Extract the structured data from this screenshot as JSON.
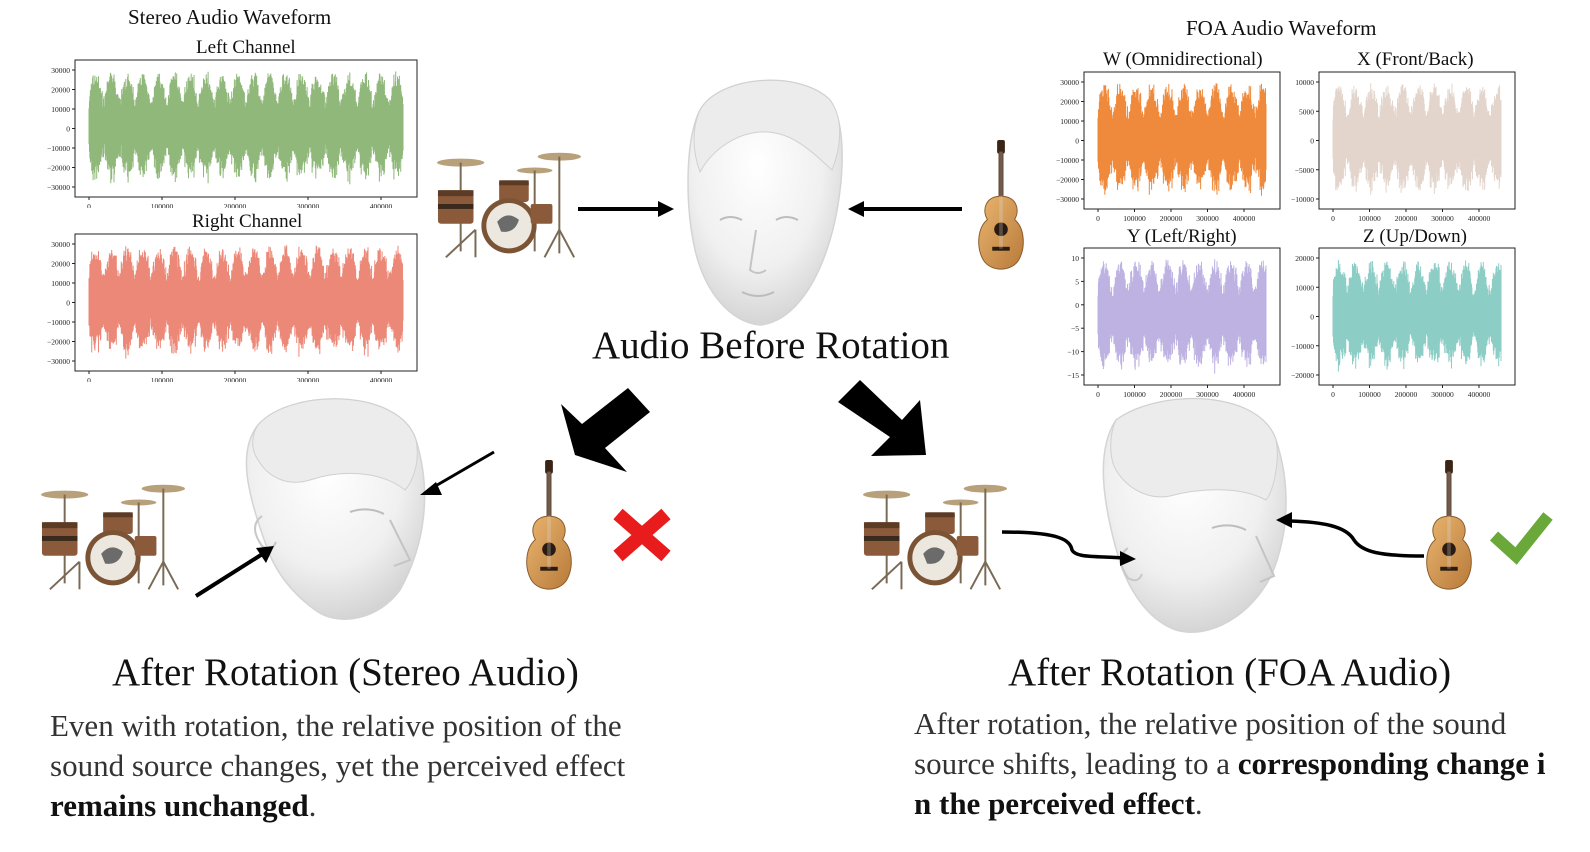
{
  "stereo": {
    "title": "Stereo Audio Waveform",
    "left": {
      "label": "Left Channel",
      "color": "#8fb87a",
      "yticks": [
        "30000",
        "20000",
        "10000",
        "0",
        "−10000",
        "−20000",
        "−30000"
      ],
      "xticks": [
        "0",
        "100000",
        "200000",
        "300000",
        "400000"
      ]
    },
    "right": {
      "label": "Right Channel",
      "color": "#ec8878",
      "yticks": [
        "30000",
        "20000",
        "10000",
        "0",
        "−10000",
        "−20000",
        "−30000"
      ],
      "xticks": [
        "0",
        "100000",
        "200000",
        "300000",
        "400000"
      ]
    }
  },
  "foa": {
    "title": "FOA Audio Waveform",
    "w": {
      "label": "W (Omnidirectional)",
      "color": "#ef8a3c",
      "yticks": [
        "30000",
        "20000",
        "10000",
        "0",
        "−10000",
        "−20000",
        "−30000"
      ],
      "xticks": [
        "0",
        "100000",
        "200000",
        "300000",
        "400000"
      ]
    },
    "x": {
      "label": "X (Front/Back)",
      "color": "#e3d5cc",
      "yticks": [
        "10000",
        "5000",
        "0",
        "−5000",
        "−10000"
      ],
      "xticks": [
        "0",
        "100000",
        "200000",
        "300000",
        "400000"
      ]
    },
    "y": {
      "label": "Y (Left/Right)",
      "color": "#bdb2e2",
      "yticks": [
        "10",
        "5",
        "0",
        "−5",
        "−10",
        "−15"
      ],
      "xticks": [
        "0",
        "100000",
        "200000",
        "300000",
        "400000"
      ]
    },
    "z": {
      "label": "Z (Up/Down)",
      "color": "#8ccdc6",
      "yticks": [
        "20000",
        "10000",
        "0",
        "−10000",
        "−20000"
      ],
      "xticks": [
        "0",
        "100000",
        "200000",
        "300000",
        "400000"
      ]
    }
  },
  "center": {
    "caption": "Audio Before Rotation"
  },
  "left_panel": {
    "caption": "After Rotation (Stereo Audio)",
    "desc_plain": "Even with rotation, the relative position of the sound source changes, yet the perceived effect ",
    "desc_bold": "remains unchanged",
    "desc_end": ".",
    "mark_color": "#e81c1c"
  },
  "right_panel": {
    "caption": "After Rotation (FOA Audio)",
    "desc_plain": "After rotation, the relative position of the sound source shifts, leading to a ",
    "desc_bold": "corresponding change in the perceived effect",
    "desc_end": ".",
    "mark_color": "#6aa83a"
  }
}
